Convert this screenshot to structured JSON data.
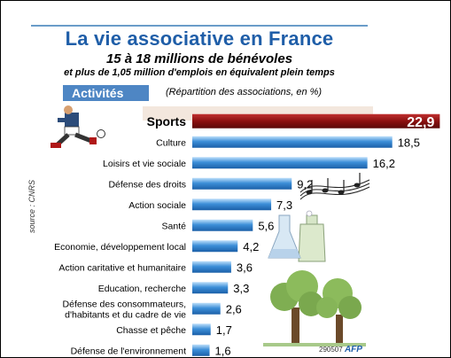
{
  "title": "La vie associative en France",
  "subtitle": "15 à 18 millions de bénévoles",
  "subtitle2": "et plus de 1,05 million d'emplois en équivalent plein temps",
  "section_label": "Activités",
  "note": "(Répartition des associations, en %)",
  "source": "source : CNRS",
  "credit_code": "290507",
  "credit_agency": "AFP",
  "colors": {
    "title": "#1f5ea8",
    "bar": "#3d8fd8",
    "highlight_bar": "#8b1010",
    "label_box": "#4e86c4"
  },
  "icons": [
    "football-player-icon",
    "music-notes-icon",
    "lab-flask-icon",
    "tree-icon"
  ],
  "chart_data": {
    "type": "bar",
    "orientation": "horizontal",
    "categories": [
      "Sports",
      "Culture",
      "Loisirs et vie sociale",
      "Défense des droits",
      "Action sociale",
      "Santé",
      "Economie, développement local",
      "Action caritative et humanitaire",
      "Education, recherche",
      "Défense des consommateurs,|d'habitants et du cadre de vie",
      "Chasse et pêche",
      "Défense de l'environnement"
    ],
    "values": [
      22.9,
      18.5,
      16.2,
      9.2,
      7.3,
      5.6,
      4.2,
      3.6,
      3.3,
      2.6,
      1.7,
      1.6
    ],
    "value_labels": [
      "22,9",
      "18,5",
      "16,2",
      "9,2",
      "7,3",
      "5,6",
      "4,2",
      "3,6",
      "3,3",
      "2,6",
      "1,7",
      "1,6"
    ],
    "highlight": "Sports",
    "grid": false,
    "legend": "none"
  }
}
